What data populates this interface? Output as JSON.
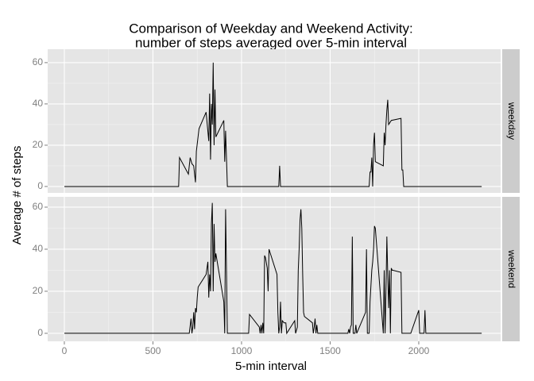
{
  "chart_data": {
    "type": "line",
    "title": [
      "Comparison of Weekday and Weekend Activity:",
      "number of steps averaged over 5-min interval"
    ],
    "xlabel": "5-min interval",
    "ylabel": "Average # of steps",
    "xlim": [
      -94,
      2462
    ],
    "xticks": [
      0,
      500,
      1000,
      1500,
      2000
    ],
    "color": "#000000",
    "grid": true,
    "facets": [
      {
        "name": "weekday",
        "ylim": [
          -3.1,
          66.5
        ],
        "yticks": [
          0,
          20,
          40,
          60
        ],
        "x": [
          0,
          645,
          650,
          700,
          710,
          720,
          730,
          740,
          745,
          760,
          800,
          815,
          820,
          825,
          830,
          835,
          840,
          845,
          850,
          855,
          900,
          905,
          910,
          920,
          1210,
          1215,
          1220,
          1720,
          1725,
          1730,
          1735,
          1740,
          1745,
          1750,
          1755,
          1800,
          1805,
          1810,
          1815,
          1820,
          1825,
          1830,
          1845,
          1900,
          1905,
          1910,
          1915,
          2355
        ],
        "values": [
          0,
          0,
          14,
          6,
          14,
          11,
          10,
          2,
          17,
          28,
          36,
          22,
          45,
          13,
          40,
          30,
          60,
          20,
          47,
          24,
          32,
          12,
          27,
          0,
          0,
          10,
          0,
          0,
          7,
          7,
          14,
          0,
          20,
          26,
          12,
          10,
          26,
          20,
          30,
          37,
          42,
          30,
          32,
          33,
          8,
          8,
          0,
          0
        ]
      },
      {
        "name": "weekend",
        "ylim": [
          -3.8,
          64.9
        ],
        "yticks": [
          0,
          20,
          40,
          60
        ],
        "x": [
          0,
          705,
          715,
          720,
          725,
          730,
          735,
          740,
          745,
          750,
          755,
          800,
          810,
          815,
          820,
          825,
          830,
          835,
          840,
          845,
          850,
          855,
          900,
          905,
          910,
          915,
          920,
          1040,
          1045,
          1100,
          1105,
          1110,
          1115,
          1120,
          1125,
          1130,
          1135,
          1145,
          1150,
          1155,
          1200,
          1205,
          1210,
          1215,
          1220,
          1225,
          1230,
          1240,
          1250,
          1255,
          1300,
          1305,
          1315,
          1320,
          1325,
          1330,
          1335,
          1340,
          1345,
          1350,
          1355,
          1400,
          1405,
          1410,
          1415,
          1420,
          1425,
          1430,
          1600,
          1605,
          1610,
          1615,
          1620,
          1625,
          1630,
          1640,
          1645,
          1650,
          1700,
          1705,
          1710,
          1720,
          1725,
          1735,
          1740,
          1745,
          1750,
          1755,
          1800,
          1805,
          1810,
          1815,
          1820,
          1825,
          1830,
          1835,
          1840,
          1845,
          1850,
          1855,
          1900,
          1905,
          1955,
          2000,
          2005,
          2030,
          2035,
          2040,
          2355
        ],
        "values": [
          0,
          0,
          7,
          0,
          3,
          10,
          2,
          12,
          10,
          17,
          22,
          28,
          34,
          17,
          28,
          20,
          52,
          62,
          20,
          52,
          34,
          38,
          15,
          0,
          59,
          30,
          0,
          0,
          9,
          3,
          0,
          4,
          0,
          5,
          0,
          37,
          36,
          31,
          20,
          40,
          28,
          10,
          0,
          3,
          15,
          0,
          6,
          5,
          5,
          0,
          6,
          0,
          3,
          30,
          40,
          54,
          59,
          50,
          28,
          10,
          8,
          5,
          0,
          3,
          7,
          0,
          4,
          0,
          0,
          2,
          0,
          3,
          4,
          46,
          0,
          0,
          4,
          0,
          10,
          40,
          0,
          0,
          15,
          30,
          34,
          40,
          51,
          50,
          0,
          30,
          0,
          20,
          46,
          28,
          12,
          30,
          0,
          31,
          30,
          30,
          29,
          0,
          0,
          11,
          0,
          0,
          11,
          0,
          0
        ]
      }
    ]
  }
}
